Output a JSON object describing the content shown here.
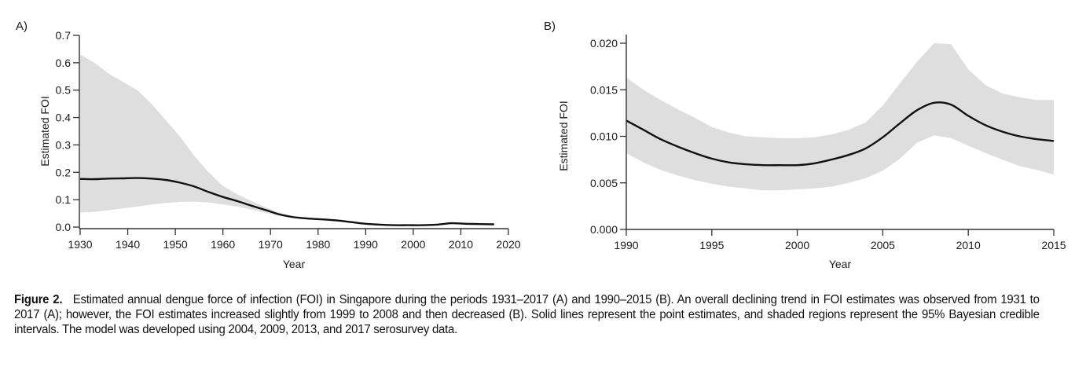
{
  "chart_data": [
    {
      "type": "line",
      "panel_label": "A)",
      "xlabel": "Year",
      "ylabel": "Estimated FOI",
      "xlim": [
        1930,
        2020
      ],
      "ylim": [
        0.0,
        0.7
      ],
      "xticks": [
        "1930",
        "1940",
        "1950",
        "1960",
        "1970",
        "1980",
        "1990",
        "2000",
        "2010",
        "2020"
      ],
      "yticks": [
        "0.0",
        "0.1",
        "0.2",
        "0.3",
        "0.4",
        "0.5",
        "0.6",
        "0.7"
      ],
      "grid": false,
      "line_color": "#111111",
      "band_color": "#dedede",
      "series": [
        {
          "name": "Point estimate",
          "x": [
            1930,
            1933,
            1936,
            1939,
            1942,
            1945,
            1948,
            1951,
            1954,
            1957,
            1960,
            1963,
            1966,
            1969,
            1972,
            1975,
            1978,
            1981,
            1984,
            1987,
            1990,
            1993,
            1996,
            1999,
            2002,
            2005,
            2008,
            2011,
            2014,
            2017
          ],
          "values": [
            0.176,
            0.175,
            0.177,
            0.178,
            0.179,
            0.177,
            0.172,
            0.162,
            0.148,
            0.128,
            0.11,
            0.095,
            0.078,
            0.062,
            0.046,
            0.036,
            0.031,
            0.028,
            0.024,
            0.018,
            0.012,
            0.009,
            0.007,
            0.007,
            0.007,
            0.009,
            0.014,
            0.012,
            0.011,
            0.01
          ]
        },
        {
          "name": "95% CrI upper",
          "x": [
            1930,
            1933,
            1936,
            1939,
            1942,
            1945,
            1948,
            1951,
            1954,
            1957,
            1960,
            1963,
            1966,
            1969,
            1972,
            1975,
            1978,
            1981,
            1984,
            1987,
            1990,
            1993,
            1996,
            1999,
            2002,
            2005,
            2008,
            2011,
            2014,
            2017
          ],
          "values": [
            0.63,
            0.6,
            0.56,
            0.53,
            0.5,
            0.45,
            0.39,
            0.33,
            0.26,
            0.2,
            0.15,
            0.12,
            0.095,
            0.072,
            0.052,
            0.04,
            0.034,
            0.03,
            0.026,
            0.02,
            0.014,
            0.011,
            0.009,
            0.009,
            0.009,
            0.011,
            0.017,
            0.014,
            0.013,
            0.012
          ]
        },
        {
          "name": "95% CrI lower",
          "x": [
            1930,
            1933,
            1936,
            1939,
            1942,
            1945,
            1948,
            1951,
            1954,
            1957,
            1960,
            1963,
            1966,
            1969,
            1972,
            1975,
            1978,
            1981,
            1984,
            1987,
            1990,
            1993,
            1996,
            1999,
            2002,
            2005,
            2008,
            2011,
            2014,
            2017
          ],
          "values": [
            0.053,
            0.055,
            0.062,
            0.068,
            0.075,
            0.082,
            0.088,
            0.092,
            0.093,
            0.09,
            0.083,
            0.075,
            0.064,
            0.052,
            0.04,
            0.032,
            0.028,
            0.025,
            0.021,
            0.016,
            0.01,
            0.007,
            0.006,
            0.006,
            0.006,
            0.007,
            0.011,
            0.01,
            0.009,
            0.008
          ]
        }
      ]
    },
    {
      "type": "line",
      "panel_label": "B)",
      "xlabel": "Year",
      "ylabel": "Estimated FOI",
      "xlim": [
        1990,
        2015
      ],
      "ylim": [
        0.0,
        0.02
      ],
      "xticks": [
        "1990",
        "1995",
        "2000",
        "2005",
        "2010",
        "2015"
      ],
      "yticks": [
        "0.000",
        "0.005",
        "0.010",
        "0.015",
        "0.020"
      ],
      "grid": false,
      "line_color": "#111111",
      "band_color": "#dedede",
      "series": [
        {
          "name": "Point estimate",
          "x": [
            1990,
            1991,
            1992,
            1993,
            1994,
            1995,
            1996,
            1997,
            1998,
            1999,
            2000,
            2001,
            2002,
            2003,
            2004,
            2005,
            2006,
            2007,
            2008,
            2009,
            2010,
            2011,
            2012,
            2013,
            2014,
            2015
          ],
          "values": [
            0.0117,
            0.0107,
            0.0097,
            0.0089,
            0.0082,
            0.0076,
            0.0072,
            0.007,
            0.0069,
            0.0069,
            0.0069,
            0.0071,
            0.0075,
            0.008,
            0.0087,
            0.0099,
            0.0114,
            0.0128,
            0.0136,
            0.0134,
            0.0122,
            0.0112,
            0.0105,
            0.01,
            0.0097,
            0.0095
          ]
        },
        {
          "name": "95% CrI upper",
          "x": [
            1990,
            1991,
            1992,
            1993,
            1994,
            1995,
            1996,
            1997,
            1998,
            1999,
            2000,
            2001,
            2002,
            2003,
            2004,
            2005,
            2006,
            2007,
            2008,
            2009,
            2010,
            2011,
            2012,
            2013,
            2014,
            2015
          ],
          "values": [
            0.0163,
            0.015,
            0.0139,
            0.0129,
            0.012,
            0.011,
            0.0104,
            0.01,
            0.0099,
            0.0098,
            0.0098,
            0.0099,
            0.0102,
            0.0107,
            0.0115,
            0.0133,
            0.0157,
            0.018,
            0.02,
            0.0199,
            0.0172,
            0.0155,
            0.0146,
            0.0142,
            0.0139,
            0.0139
          ]
        },
        {
          "name": "95% CrI lower",
          "x": [
            1990,
            1991,
            1992,
            1993,
            1994,
            1995,
            1996,
            1997,
            1998,
            1999,
            2000,
            2001,
            2002,
            2003,
            2004,
            2005,
            2006,
            2007,
            2008,
            2009,
            2010,
            2011,
            2012,
            2013,
            2014,
            2015
          ],
          "values": [
            0.0082,
            0.0072,
            0.0064,
            0.0058,
            0.0053,
            0.0049,
            0.0046,
            0.0044,
            0.0042,
            0.0042,
            0.0043,
            0.0044,
            0.0046,
            0.005,
            0.0055,
            0.0063,
            0.0076,
            0.0093,
            0.0101,
            0.0098,
            0.009,
            0.0082,
            0.0075,
            0.0068,
            0.0064,
            0.0059
          ]
        }
      ]
    }
  ],
  "caption": {
    "label": "Figure 2.",
    "text": "Estimated annual dengue force of infection (FOI) in Singapore during the periods 1931–2017 (A) and 1990–2015 (B). An overall declining trend in FOI estimates was observed from 1931 to 2017 (A); however, the FOI estimates increased slightly from 1999 to 2008 and then decreased (B). Solid lines represent the point estimates, and shaded regions represent the 95% Bayesian credible intervals. The model was developed using 2004, 2009, 2013, and 2017 serosurvey data."
  }
}
